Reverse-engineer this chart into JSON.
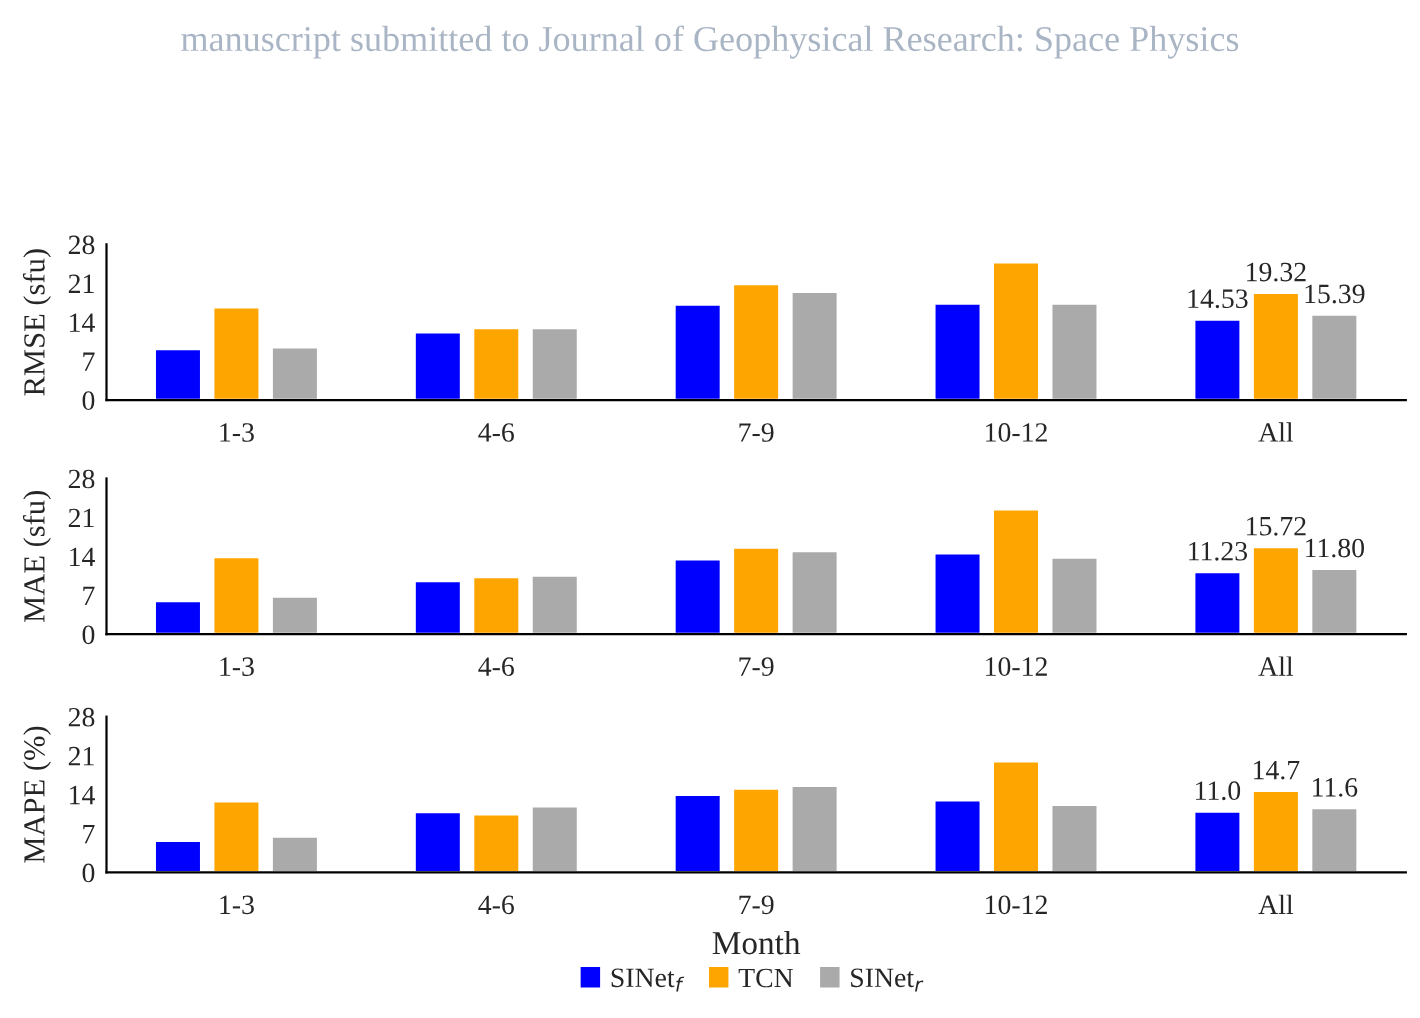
{
  "chart_data": [
    {
      "type": "bar",
      "title": "manuscript submitted to Journal of Geophysical Research: Space Physics",
      "ylabel": "RMSE (sfu)",
      "categories": [
        "1-3",
        "4-6",
        "7-9",
        "10-12",
        "All"
      ],
      "ylim": [
        0,
        28
      ],
      "yticks": [
        0,
        7,
        14,
        21,
        28
      ],
      "grid": false,
      "legend": "bottom",
      "series": [
        {
          "name": "SINet$_{f}$",
          "color": "#0000ff",
          "values": [
            9.2,
            12.2,
            17.2,
            17.4,
            14.53
          ],
          "value_labels": [
            null,
            null,
            null,
            null,
            "14.53"
          ]
        },
        {
          "name": "TCN",
          "color": "#ffa500",
          "values": [
            16.7,
            13.0,
            20.9,
            24.8,
            19.32
          ],
          "value_labels": [
            null,
            null,
            null,
            null,
            "19.32"
          ]
        },
        {
          "name": "SINet$_{r}$",
          "color": "#aaaaaa",
          "values": [
            9.5,
            13.0,
            19.5,
            17.4,
            15.39
          ],
          "value_labels": [
            null,
            null,
            null,
            null,
            "15.39"
          ]
        }
      ]
    },
    {
      "type": "bar",
      "ylabel": "MAE (sfu)",
      "categories": [
        "1-3",
        "4-6",
        "7-9",
        "10-12",
        "All"
      ],
      "ylim": [
        0,
        28
      ],
      "yticks": [
        0,
        7,
        14,
        21,
        28
      ],
      "grid": false,
      "series": [
        {
          "color": "#0000ff",
          "values": [
            6.0,
            9.6,
            13.5,
            14.6,
            11.23
          ],
          "value_labels": [
            null,
            null,
            null,
            null,
            "11.23"
          ]
        },
        {
          "color": "#ffa500",
          "values": [
            13.9,
            10.3,
            15.6,
            22.5,
            15.72
          ],
          "value_labels": [
            null,
            null,
            null,
            null,
            "15.72"
          ]
        },
        {
          "color": "#aaaaaa",
          "values": [
            6.8,
            10.6,
            15.0,
            13.8,
            11.8
          ],
          "value_labels": [
            null,
            null,
            null,
            null,
            "11.80"
          ]
        }
      ]
    },
    {
      "type": "bar",
      "ylabel": "MAPE (%)",
      "xlabel": "Month",
      "categories": [
        "1-3",
        "4-6",
        "7-9",
        "10-12",
        "All"
      ],
      "ylim": [
        0,
        28
      ],
      "yticks": [
        0,
        7,
        14,
        21,
        28
      ],
      "grid": false,
      "series": [
        {
          "color": "#0000ff",
          "values": [
            5.7,
            10.9,
            14.0,
            13.0,
            11.0
          ],
          "value_labels": [
            null,
            null,
            null,
            null,
            "11.0"
          ]
        },
        {
          "color": "#ffa500",
          "values": [
            12.8,
            10.5,
            15.1,
            20.0,
            14.7
          ],
          "value_labels": [
            null,
            null,
            null,
            null,
            "14.7"
          ]
        },
        {
          "color": "#aaaaaa",
          "values": [
            6.5,
            11.9,
            15.6,
            12.2,
            11.6
          ],
          "value_labels": [
            null,
            null,
            null,
            null,
            "11.6"
          ]
        }
      ]
    }
  ]
}
